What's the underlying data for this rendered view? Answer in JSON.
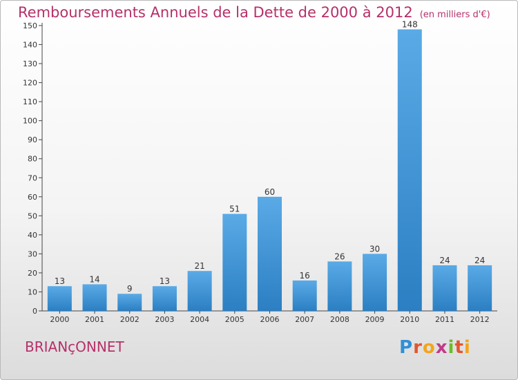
{
  "header": {
    "title": "Remboursements Annuels de la Dette de 2000 à 2012",
    "subtitle": "(en milliers d'€)"
  },
  "footer": {
    "commune": "BRIANçONNET",
    "logo_text": "Proxiti"
  },
  "colors": {
    "title": "#b5306a",
    "bar_light": "#5aaae6",
    "bar_dark": "#2b7fc2"
  },
  "chart_data": {
    "type": "bar",
    "title": "Remboursements Annuels de la Dette de 2000 à 2012",
    "subtitle": "(en milliers d'€)",
    "categories": [
      "2000",
      "2001",
      "2002",
      "2003",
      "2004",
      "2005",
      "2006",
      "2007",
      "2008",
      "2009",
      "2010",
      "2011",
      "2012"
    ],
    "values": [
      13,
      14,
      9,
      13,
      21,
      51,
      60,
      16,
      26,
      30,
      148,
      24,
      24
    ],
    "ylim": [
      0,
      150
    ],
    "yticks": [
      0,
      10,
      20,
      30,
      40,
      50,
      60,
      70,
      80,
      90,
      100,
      110,
      120,
      130,
      140,
      150
    ],
    "grid": false,
    "data_labels": true
  }
}
